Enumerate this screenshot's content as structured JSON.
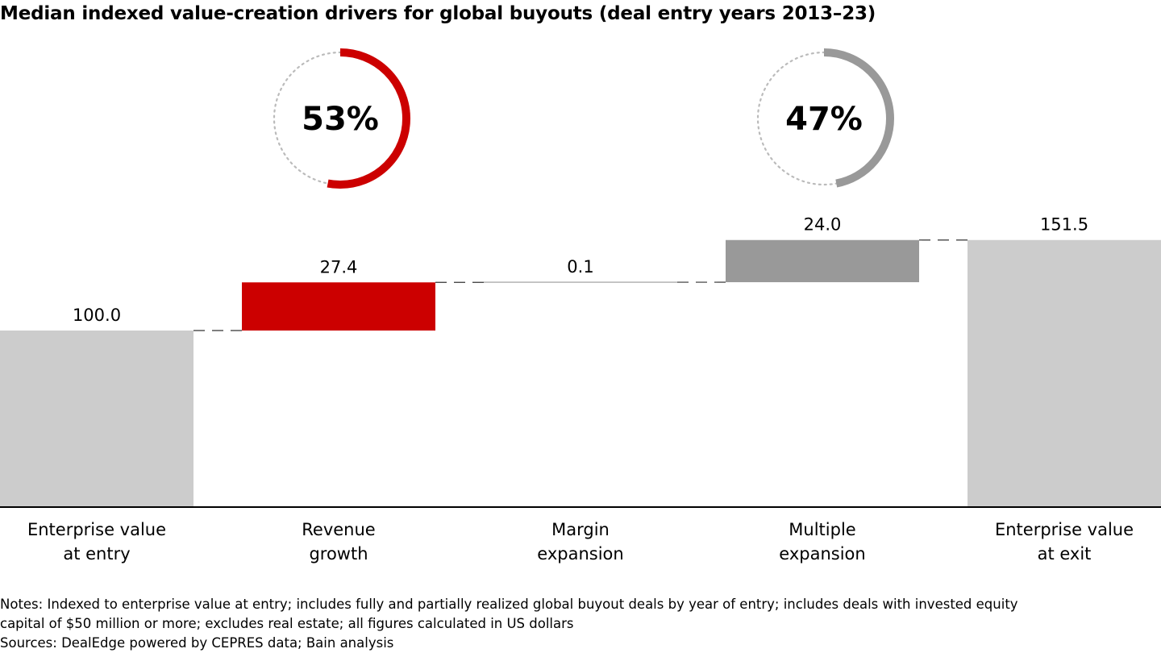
{
  "title": "Median indexed value-creation drivers for global buyouts (deal entry years 2013–23)",
  "chart_data": {
    "type": "waterfall",
    "categories": [
      [
        "Enterprise value",
        "at entry"
      ],
      [
        "Revenue",
        "growth"
      ],
      [
        "Margin",
        "expansion"
      ],
      [
        "Multiple",
        "expansion"
      ],
      [
        "Enterprise value",
        "at exit"
      ]
    ],
    "values": [
      100.0,
      27.4,
      0.1,
      24.0,
      151.5
    ],
    "value_labels": [
      "100.0",
      "27.4",
      "0.1",
      "24.0",
      "151.5"
    ],
    "kinds": [
      "total",
      "delta",
      "delta",
      "delta",
      "total"
    ],
    "colors": [
      "#cccccc",
      "#cc0000",
      "#999999",
      "#999999",
      "#cccccc"
    ],
    "shares": [
      {
        "label": "53%",
        "value": 53,
        "color": "#cc0000",
        "above_category": 1
      },
      {
        "label": "47%",
        "value": 47,
        "color": "#999999",
        "above_category": 3
      }
    ],
    "connector_style": "dashed",
    "grid": false,
    "legend": "none"
  },
  "notes": {
    "line1": "Notes: Indexed to enterprise value at entry; includes fully and partially realized global buyout deals by year of entry; includes deals with invested equity",
    "line2": "capital of $50 million or more; excludes real estate; all figures calculated in US dollars",
    "sources": "Sources: DealEdge powered by CEPRES data; Bain analysis"
  }
}
